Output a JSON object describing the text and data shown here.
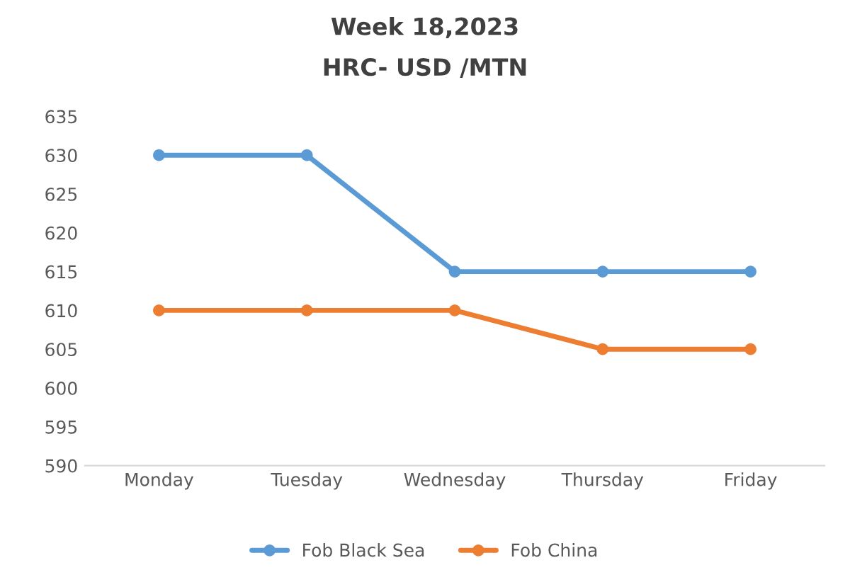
{
  "chart_data": {
    "type": "line",
    "title": "Week 18,2023",
    "subtitle": "HRC- USD /MTN",
    "categories": [
      "Monday",
      "Tuesday",
      "Wednesday",
      "Thursday",
      "Friday"
    ],
    "series": [
      {
        "name": "Fob Black Sea",
        "color": "#5b9bd5",
        "values": [
          630,
          630,
          615,
          615,
          615
        ]
      },
      {
        "name": "Fob China",
        "color": "#ed7d31",
        "values": [
          610,
          610,
          610,
          605,
          605
        ]
      }
    ],
    "ylim": [
      590,
      635
    ],
    "yticks": [
      590,
      595,
      600,
      605,
      610,
      615,
      620,
      625,
      630,
      635
    ],
    "grid": false,
    "legend": "bottom",
    "marker": "circle",
    "line_style": "solid"
  }
}
